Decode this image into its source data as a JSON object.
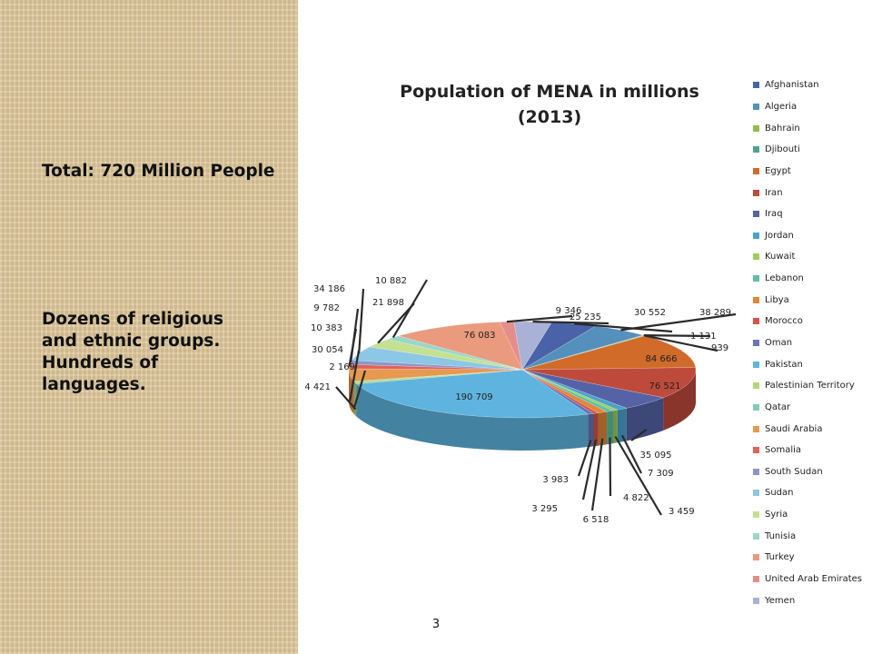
{
  "slide": {
    "total_text": "Total: 720 Million People",
    "diversity_text": "Dozens of religious and ethnic groups. Hundreds of languages.",
    "page_number": "3"
  },
  "chart_data": {
    "type": "pie",
    "title": "Population of MENA in millions (2013)",
    "legend_position": "right",
    "three_d": true,
    "categories": [
      "Afghanistan",
      "Algeria",
      "Bahrain",
      "Djibouti",
      "Egypt",
      "Iran",
      "Iraq",
      "Jordan",
      "Kuwait",
      "Lebanon",
      "Libya",
      "Morocco",
      "Oman",
      "Pakistan",
      "Palestinian Territory",
      "Qatar",
      "Saudi Arabia",
      "Somalia",
      "South Sudan",
      "Sudan",
      "Syria",
      "Tunisia",
      "Turkey",
      "United Arab Emirates",
      "Yemen"
    ],
    "values": [
      30552,
      38289,
      1131,
      939,
      84666,
      76521,
      35095,
      7309,
      3459,
      4822,
      6518,
      3295,
      3983,
      190709,
      4421,
      2169,
      30054,
      10383,
      9782,
      34186,
      21898,
      10882,
      76083,
      9346,
      25235
    ],
    "data_labels": [
      "30 552",
      "38 289",
      "1 131",
      "939",
      "84 666",
      "76 521",
      "35 095",
      "7 309",
      "3 459",
      "4 822",
      "6 518",
      "3 295",
      "3 983",
      "190 709",
      "4 421",
      "2 169",
      "30 054",
      "10 383",
      "9 782",
      "34 186",
      "21 898",
      "10 882",
      "76 083",
      "9 346",
      "25 235"
    ],
    "colors": [
      "#4a62a8",
      "#5590bd",
      "#8fbe4e",
      "#4ea390",
      "#d06b2a",
      "#be4a3c",
      "#5562a6",
      "#4aa3cf",
      "#9fcd5c",
      "#5dbfa3",
      "#e0873a",
      "#d45548",
      "#6a75b7",
      "#5fb4df",
      "#b3d778",
      "#7fcdb8",
      "#e6994f",
      "#e06459",
      "#8d96c7",
      "#8cc7e5",
      "#c4e091",
      "#9bd7c8",
      "#ea9a7d",
      "#e58d8a",
      "#a9b2d6"
    ]
  }
}
